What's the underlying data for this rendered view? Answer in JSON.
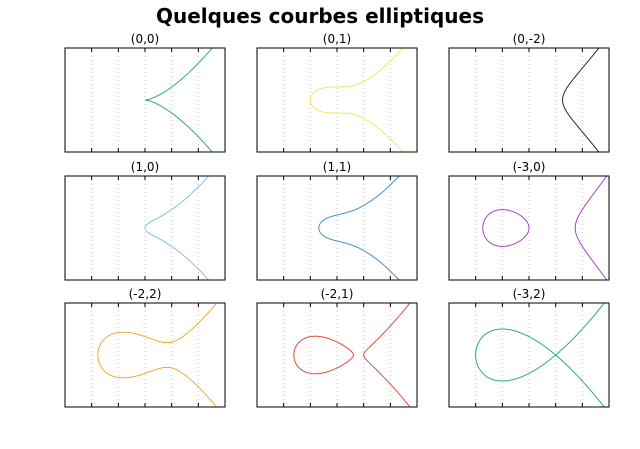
{
  "figure": {
    "title": "Quelques courbes elliptiques"
  },
  "chart_data": [
    {
      "type": "line",
      "title": "(0,0)",
      "a": 0,
      "b": 0,
      "color": "#199e77",
      "xlim": [
        -3,
        3
      ],
      "ylim": [
        -4,
        4
      ],
      "x_ticks": [
        -3,
        -2,
        -1,
        0,
        1,
        2,
        3
      ],
      "grid": "vertical dotted"
    },
    {
      "type": "line",
      "title": "(0,1)",
      "a": 0,
      "b": 1,
      "color": "#f1e44b",
      "xlim": [
        -3,
        3
      ],
      "ylim": [
        -4,
        4
      ],
      "x_ticks": [
        -3,
        -2,
        -1,
        0,
        1,
        2,
        3
      ],
      "grid": "vertical dotted"
    },
    {
      "type": "line",
      "title": "(0,-2)",
      "a": 0,
      "b": -2,
      "color": "#111111",
      "xlim": [
        -3,
        3
      ],
      "ylim": [
        -4,
        4
      ],
      "x_ticks": [
        -3,
        -2,
        -1,
        0,
        1,
        2,
        3
      ],
      "grid": "vertical dotted"
    },
    {
      "type": "line",
      "title": "(1,0)",
      "a": 1,
      "b": 0,
      "color": "#6fb9e8",
      "xlim": [
        -3,
        3
      ],
      "ylim": [
        -4,
        4
      ],
      "x_ticks": [
        -3,
        -2,
        -1,
        0,
        1,
        2,
        3
      ],
      "grid": "vertical dotted"
    },
    {
      "type": "line",
      "title": "(1,1)",
      "a": 1,
      "b": 1,
      "color": "#2c86c2",
      "xlim": [
        -3,
        3
      ],
      "ylim": [
        -4,
        4
      ],
      "x_ticks": [
        -3,
        -2,
        -1,
        0,
        1,
        2,
        3
      ],
      "grid": "vertical dotted"
    },
    {
      "type": "line",
      "title": "(-3,0)",
      "a": -3,
      "b": 0,
      "color": "#9b2fc9",
      "xlim": [
        -3,
        3
      ],
      "ylim": [
        -4,
        4
      ],
      "x_ticks": [
        -3,
        -2,
        -1,
        0,
        1,
        2,
        3
      ],
      "grid": "vertical dotted"
    },
    {
      "type": "line",
      "title": "(-2,2)",
      "a": -2,
      "b": 2,
      "color": "#eea21b",
      "xlim": [
        -3,
        3
      ],
      "ylim": [
        -4,
        4
      ],
      "x_ticks": [
        -3,
        -2,
        -1,
        0,
        1,
        2,
        3
      ],
      "grid": "vertical dotted"
    },
    {
      "type": "line",
      "title": "(-2,1)",
      "a": -2,
      "b": 1,
      "color": "#e0362a",
      "xlim": [
        -3,
        3
      ],
      "ylim": [
        -4,
        4
      ],
      "x_ticks": [
        -3,
        -2,
        -1,
        0,
        1,
        2,
        3
      ],
      "grid": "vertical dotted"
    },
    {
      "type": "line",
      "title": "(-3,2)",
      "a": -3,
      "b": 2,
      "color": "#199e77",
      "xlim": [
        -3,
        3
      ],
      "ylim": [
        -4,
        4
      ],
      "x_ticks": [
        -3,
        -2,
        -1,
        0,
        1,
        2,
        3
      ],
      "grid": "vertical dotted"
    }
  ]
}
